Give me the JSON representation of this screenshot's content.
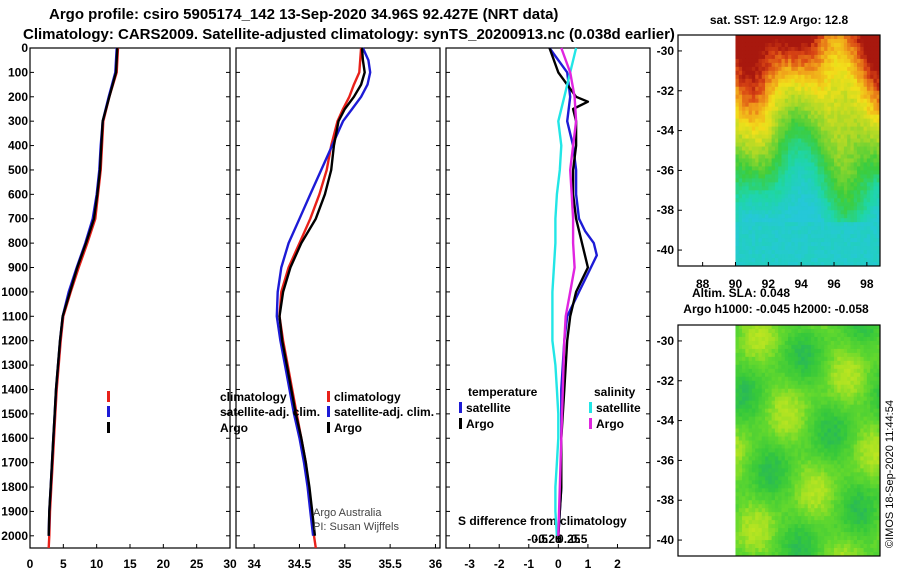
{
  "header": {
    "title_line1": "Argo profile: csiro 5905174_142 13-Sep-2020 34.96S 92.427E (NRT data)",
    "title_line2": "Climatology: CARS2009. Satellite-adjusted climatology: synTS_20200913.nc (0.038d earlier)"
  },
  "colors": {
    "climatology": "#e8211a",
    "satellite": "#1d1bd6",
    "argo": "#000000",
    "satellite_salinity": "#22e6e6",
    "argo_salinity": "#e025e0"
  },
  "chart_data": [
    {
      "type": "line",
      "name": "temperature-profile",
      "xlim": [
        0,
        30
      ],
      "ylim": [
        2050,
        0
      ],
      "x_ticks": [
        0,
        5,
        10,
        15,
        20,
        25,
        30
      ],
      "x_tick_labels": [
        "0",
        "5",
        "10",
        "15",
        "20",
        "25",
        "30"
      ],
      "y_ticks": [
        0,
        100,
        200,
        300,
        400,
        500,
        600,
        700,
        800,
        900,
        1000,
        1100,
        1200,
        1300,
        1400,
        1500,
        1600,
        1700,
        1800,
        1900,
        2000
      ],
      "y_tick_labels": [
        "0",
        "100",
        "200",
        "300",
        "400",
        "500",
        "600",
        "700",
        "800",
        "900",
        "1000",
        "1100",
        "1200",
        "1300",
        "1400",
        "1500",
        "1600",
        "1700",
        "1800",
        "1900",
        "2000"
      ],
      "legend": [
        "climatology",
        "satellite-adj. clim.",
        "Argo"
      ],
      "series": [
        {
          "name": "climatology",
          "color_key": "climatology",
          "depth": [
            0,
            100,
            200,
            300,
            400,
            500,
            600,
            700,
            800,
            900,
            1000,
            1100,
            1200,
            1300,
            1400,
            1500,
            1600,
            1700,
            1800,
            1900,
            2000,
            2050
          ],
          "values": [
            13.2,
            13.0,
            11.9,
            11.0,
            10.8,
            10.6,
            10.2,
            9.8,
            8.6,
            7.3,
            6.1,
            5.0,
            4.6,
            4.3,
            4.0,
            3.8,
            3.6,
            3.4,
            3.2,
            3.0,
            2.9,
            2.8
          ]
        },
        {
          "name": "satellite-adj. clim.",
          "color_key": "satellite",
          "depth": [
            0,
            100,
            200,
            300,
            400,
            500,
            600,
            700,
            800,
            900,
            1000,
            1100,
            1200,
            1300,
            1400,
            1500,
            1600,
            1700,
            1800,
            1900,
            2000
          ],
          "values": [
            13.0,
            12.8,
            11.8,
            10.9,
            10.6,
            10.4,
            10.0,
            9.4,
            8.3,
            7.0,
            5.8,
            4.9,
            4.5,
            4.2,
            3.9,
            3.7,
            3.5,
            3.3,
            3.1,
            2.9,
            2.8
          ]
        },
        {
          "name": "Argo",
          "color_key": "argo",
          "depth": [
            0,
            100,
            200,
            300,
            400,
            500,
            600,
            700,
            800,
            900,
            1000,
            1100,
            1200,
            1300,
            1400,
            1500,
            1600,
            1700,
            1800,
            1900,
            2000
          ],
          "values": [
            13.1,
            12.9,
            11.9,
            10.9,
            10.7,
            10.5,
            10.1,
            9.6,
            8.4,
            7.1,
            6.0,
            4.9,
            4.5,
            4.2,
            3.9,
            3.7,
            3.5,
            3.3,
            3.1,
            2.9,
            2.8
          ]
        }
      ]
    },
    {
      "type": "line",
      "name": "salinity-profile",
      "xlim": [
        33.8,
        36.05
      ],
      "ylim": [
        2050,
        0
      ],
      "x_ticks": [
        34,
        34.5,
        35,
        35.5,
        36
      ],
      "x_tick_labels": [
        "34",
        "34.5",
        "35",
        "35.5",
        "36"
      ],
      "legend": [
        "climatology",
        "satellite-adj. clim.",
        "Argo"
      ],
      "annotation_lines": [
        "Argo Australia",
        "PI: Susan Wijffels"
      ],
      "series": [
        {
          "name": "climatology",
          "color_key": "climatology",
          "depth": [
            0,
            50,
            100,
            150,
            200,
            250,
            300,
            400,
            500,
            600,
            700,
            800,
            900,
            1000,
            1100,
            1200,
            1300,
            1400,
            1500,
            1600,
            1700,
            1800,
            1900,
            2000,
            2050
          ],
          "values": [
            35.18,
            35.17,
            35.16,
            35.1,
            35.05,
            34.98,
            34.92,
            34.85,
            34.8,
            34.72,
            34.62,
            34.5,
            34.38,
            34.3,
            34.28,
            34.32,
            34.37,
            34.42,
            34.47,
            34.52,
            34.57,
            34.6,
            34.63,
            34.66,
            34.68
          ]
        },
        {
          "name": "satellite-adj. clim.",
          "color_key": "satellite",
          "depth": [
            0,
            50,
            100,
            150,
            200,
            250,
            300,
            400,
            500,
            600,
            700,
            800,
            900,
            1000,
            1100,
            1200,
            1300,
            1400,
            1500,
            1600,
            1700,
            1800,
            1900,
            2000
          ],
          "values": [
            35.2,
            35.26,
            35.28,
            35.25,
            35.18,
            35.08,
            34.98,
            34.86,
            34.74,
            34.62,
            34.5,
            34.38,
            34.3,
            34.26,
            34.25,
            34.29,
            34.34,
            34.39,
            34.44,
            34.5,
            34.55,
            34.59,
            34.62,
            34.65
          ]
        },
        {
          "name": "Argo",
          "color_key": "argo",
          "depth": [
            0,
            50,
            100,
            150,
            200,
            250,
            300,
            400,
            500,
            600,
            700,
            800,
            900,
            1000,
            1100,
            1200,
            1300,
            1400,
            1500,
            1600,
            1700,
            1800,
            1900,
            2000
          ],
          "values": [
            35.19,
            35.2,
            35.22,
            35.18,
            35.1,
            35.0,
            34.93,
            34.88,
            34.85,
            34.78,
            34.68,
            34.52,
            34.4,
            34.32,
            34.28,
            34.31,
            34.36,
            34.41,
            34.46,
            34.52,
            34.57,
            34.61,
            34.64,
            34.67
          ]
        }
      ]
    },
    {
      "type": "line",
      "name": "difference-from-climatology",
      "xlabel": "S difference from climatology",
      "xlim": [
        -3.8,
        3.1
      ],
      "ylim": [
        2050,
        0
      ],
      "x_ticks": [
        -3,
        -2,
        -1,
        0,
        1,
        2
      ],
      "x_tick_labels": [
        "-3",
        "-2",
        "-1",
        "0",
        "1",
        "2"
      ],
      "x_ticks_top": [
        -0.5,
        -0.25,
        0,
        0.25,
        0.5
      ],
      "x_tick_labels_top": [
        "-0.5",
        "-0.25",
        "0",
        "0.25",
        "0.5"
      ],
      "legend_groups": {
        "temperature": [
          "satellite",
          "Argo"
        ],
        "salinity": [
          "satellite",
          "Argo"
        ]
      },
      "series": [
        {
          "name": "temperature satellite",
          "color_key": "satellite",
          "depth": [
            0,
            100,
            200,
            300,
            400,
            500,
            600,
            700,
            750,
            800,
            850,
            900,
            1000,
            1100,
            1200,
            1400,
            1600,
            1800,
            2000
          ],
          "values": [
            -0.3,
            0.3,
            0.4,
            0.3,
            0.5,
            0.6,
            0.6,
            0.7,
            0.9,
            1.2,
            1.3,
            1.1,
            0.7,
            0.3,
            0.2,
            0.1,
            0.1,
            0.1,
            0.0
          ]
        },
        {
          "name": "temperature Argo",
          "color_key": "argo",
          "depth": [
            0,
            100,
            200,
            220,
            250,
            300,
            400,
            500,
            600,
            700,
            800,
            900,
            950,
            1000,
            1100,
            1200,
            1400,
            1600,
            1800,
            2000
          ],
          "values": [
            -0.3,
            0.0,
            0.6,
            1.0,
            0.5,
            0.6,
            0.6,
            0.5,
            0.5,
            0.6,
            0.8,
            1.0,
            0.8,
            0.6,
            0.4,
            0.3,
            0.2,
            0.1,
            0.1,
            0.0
          ]
        },
        {
          "name": "salinity satellite",
          "color_key": "satellite_salinity",
          "depth": [
            0,
            100,
            200,
            300,
            400,
            500,
            600,
            700,
            800,
            900,
            1000,
            1100,
            1200,
            1300,
            1400,
            1500,
            1600,
            1700,
            1800,
            1900,
            2000
          ],
          "values": [
            0.6,
            0.4,
            0.2,
            0.0,
            0.1,
            0.05,
            -0.05,
            -0.1,
            -0.1,
            -0.15,
            -0.2,
            -0.2,
            -0.2,
            -0.1,
            -0.05,
            0.0,
            0.0,
            -0.05,
            -0.1,
            -0.1,
            -0.05
          ]
        },
        {
          "name": "salinity Argo",
          "color_key": "argo_salinity",
          "depth": [
            0,
            100,
            200,
            300,
            400,
            500,
            600,
            700,
            800,
            900,
            1000,
            1100,
            1200,
            1400,
            1600,
            1800,
            2000
          ],
          "values": [
            0.1,
            0.4,
            0.55,
            0.6,
            0.5,
            0.4,
            0.45,
            0.5,
            0.5,
            0.55,
            0.4,
            0.25,
            0.2,
            0.15,
            0.1,
            0.05,
            0.0
          ]
        }
      ]
    },
    {
      "type": "heatmap",
      "name": "sst-map",
      "title": "sat. SST: 12.9 Argo: 12.8",
      "xlim": [
        86.5,
        98.8
      ],
      "ylim": [
        -40.8,
        -29.2
      ],
      "x_ticks": [
        88,
        90,
        92,
        94,
        96,
        98
      ],
      "x_tick_labels": [
        "88",
        "90",
        "92",
        "94",
        "96",
        "98"
      ],
      "y_ticks": [
        -30,
        -32,
        -34,
        -36,
        -38,
        -40
      ],
      "y_tick_labels": [
        "-30",
        "-32",
        "-34",
        "-36",
        "-38",
        "-40"
      ],
      "data_lon_min": 90,
      "data_lon_max": 98.8,
      "cols": 44,
      "rows": 58,
      "value_range": [
        9,
        20
      ]
    },
    {
      "type": "heatmap",
      "name": "sla-map",
      "title_line1": "Altim. SLA: 0.048",
      "title_line2": "Argo h1000: -0.045 h2000: -0.058",
      "xlim": [
        86.5,
        98.8
      ],
      "ylim": [
        -40.8,
        -29.2
      ],
      "y_ticks": [
        -30,
        -32,
        -34,
        -36,
        -38,
        -40
      ],
      "y_tick_labels": [
        "-30",
        "-32",
        "-34",
        "-36",
        "-38",
        "-40"
      ],
      "data_lon_min": 90,
      "data_lon_max": 98.8,
      "cols": 44,
      "rows": 58,
      "value_range": [
        -0.3,
        0.3
      ]
    }
  ],
  "footer": {
    "credit": "©IMOS 18-Sep-2020 11:44:54"
  }
}
